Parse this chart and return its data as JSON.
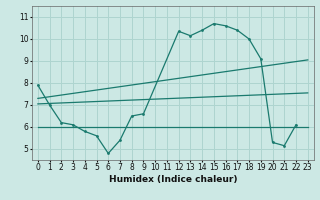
{
  "title": "",
  "xlabel": "Humidex (Indice chaleur)",
  "bg_color": "#cce8e4",
  "grid_color": "#aed4cf",
  "line_color": "#1a7a6e",
  "xlim": [
    -0.5,
    23.5
  ],
  "ylim": [
    4.5,
    11.5
  ],
  "xticks": [
    0,
    1,
    2,
    3,
    4,
    5,
    6,
    7,
    8,
    9,
    10,
    11,
    12,
    13,
    14,
    15,
    16,
    17,
    18,
    19,
    20,
    21,
    22,
    23
  ],
  "yticks": [
    5,
    6,
    7,
    8,
    9,
    10,
    11
  ],
  "curve1_x": [
    0,
    1,
    2,
    3,
    4,
    5,
    6,
    7,
    8,
    9,
    12,
    13,
    14,
    15,
    16,
    17,
    18,
    19,
    20,
    21,
    22
  ],
  "curve1_y": [
    7.9,
    7.0,
    6.2,
    6.1,
    5.8,
    5.6,
    4.8,
    5.4,
    6.5,
    6.6,
    10.35,
    10.15,
    10.4,
    10.7,
    10.6,
    10.4,
    10.0,
    9.1,
    5.3,
    5.15,
    6.1
  ],
  "curve2_x": [
    0,
    23
  ],
  "curve2_y": [
    6.0,
    6.0
  ],
  "curve3_x": [
    0,
    23
  ],
  "curve3_y": [
    7.05,
    7.55
  ],
  "curve4_x": [
    0,
    23
  ],
  "curve4_y": [
    7.3,
    9.05
  ]
}
